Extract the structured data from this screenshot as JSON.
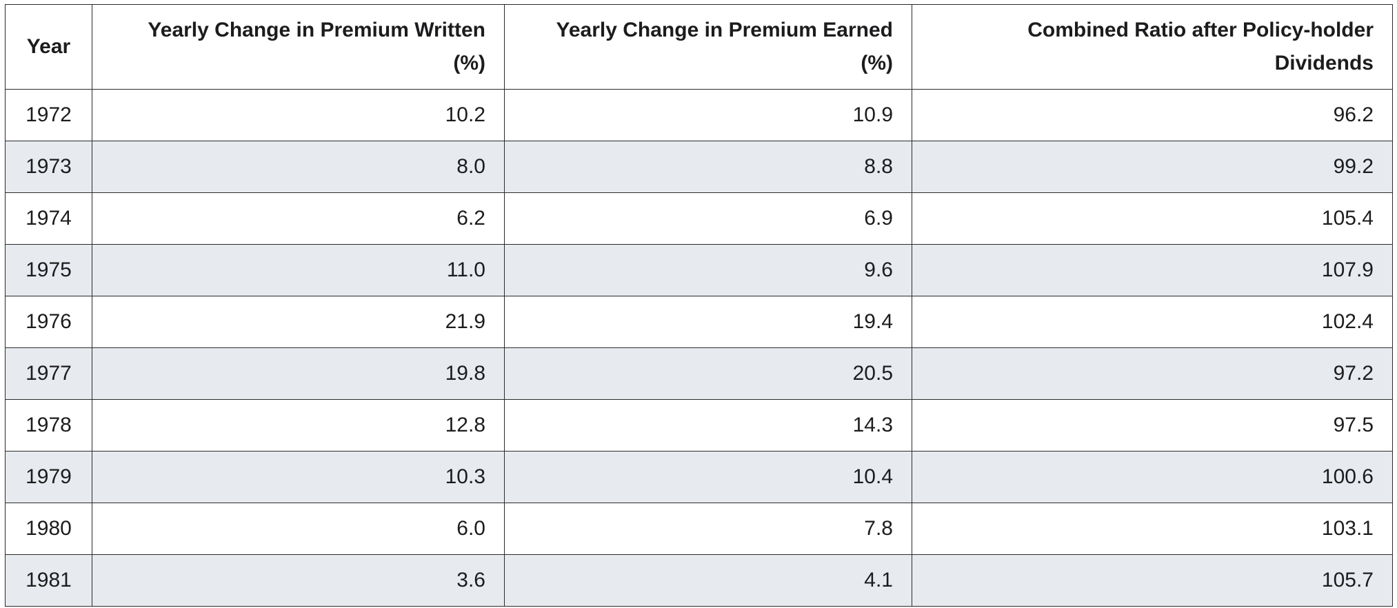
{
  "chart_data": {
    "type": "table",
    "columns": [
      "Year",
      "Yearly Change in Premium Written (%)",
      "Yearly Change in Premium Earned (%)",
      "Combined Ratio after Policy-holder Dividends"
    ],
    "rows": [
      [
        "1972",
        "10.2",
        "10.9",
        "96.2"
      ],
      [
        "1973",
        "8.0",
        "8.8",
        "99.2"
      ],
      [
        "1974",
        "6.2",
        "6.9",
        "105.4"
      ],
      [
        "1975",
        "11.0",
        "9.6",
        "107.9"
      ],
      [
        "1976",
        "21.9",
        "19.4",
        "102.4"
      ],
      [
        "1977",
        "19.8",
        "20.5",
        "97.2"
      ],
      [
        "1978",
        "12.8",
        "14.3",
        "97.5"
      ],
      [
        "1979",
        "10.3",
        "10.4",
        "100.6"
      ],
      [
        "1980",
        "6.0",
        "7.8",
        "103.1"
      ],
      [
        "1981",
        "3.6",
        "4.1",
        "105.7"
      ]
    ],
    "row_stripe_color": "#e7eaee",
    "border_color": "#2a2a2a"
  }
}
